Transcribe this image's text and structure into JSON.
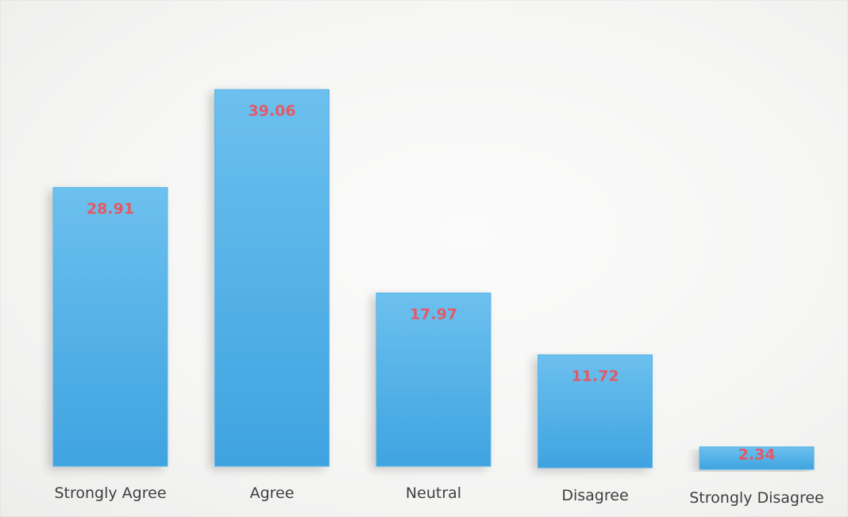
{
  "chart_data": {
    "type": "bar",
    "categories": [
      "Strongly Agree",
      "Agree",
      "Neutral",
      "Disagree",
      "Strongly Disagree"
    ],
    "values": [
      28.91,
      39.06,
      17.97,
      11.72,
      2.34
    ],
    "value_labels": [
      "28.91",
      "39.06",
      "17.97",
      "11.72",
      "2.34"
    ],
    "title": "",
    "xlabel": "",
    "ylabel": "",
    "ylim": [
      0,
      39.06
    ],
    "grid": false,
    "legend": "none",
    "colors": {
      "bar_top": "#6cc0ee",
      "bar_bottom": "#3fa3e0",
      "bar_edge": "#5ab4e8",
      "value_label": "#e35a67",
      "category_label": "#3e3e3e"
    }
  }
}
